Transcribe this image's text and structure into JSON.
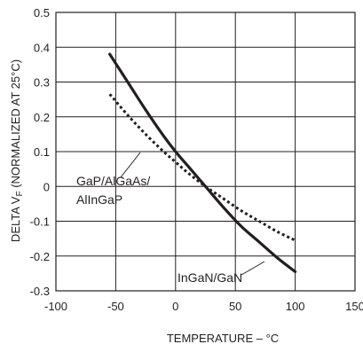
{
  "chart_data": {
    "type": "line",
    "xlabel": "TEMPERATURE – °C",
    "ylabel_main": "DELTA V",
    "ylabel_sub": "F",
    "ylabel_tail": " (NORMALIZED AT 25°C)",
    "xlim": [
      -100,
      150
    ],
    "ylim": [
      -0.3,
      0.5
    ],
    "xticks": [
      "-100",
      "-50",
      "0",
      "50",
      "100",
      "150"
    ],
    "yticks": [
      "0.5",
      "0.4",
      "0.3",
      "0.2",
      "0.1",
      "0",
      "-0.1",
      "-0.2",
      "-0.3"
    ],
    "grid": true,
    "series": [
      {
        "name": "InGaN/GaN",
        "style": "solid",
        "x": [
          -55,
          -40,
          -25,
          -10,
          0,
          10,
          25,
          40,
          55,
          70,
          85,
          100
        ],
        "y": [
          0.38,
          0.3,
          0.22,
          0.145,
          0.1,
          0.06,
          0.0,
          -0.06,
          -0.115,
          -0.16,
          -0.205,
          -0.245
        ]
      },
      {
        "name": "GaP/AlGaAs/AlInGaP",
        "style": "dotted",
        "x": [
          -55,
          -40,
          -25,
          -10,
          0,
          10,
          25,
          40,
          55,
          70,
          85,
          100
        ],
        "y": [
          0.265,
          0.205,
          0.15,
          0.1,
          0.07,
          0.04,
          0.0,
          -0.035,
          -0.07,
          -0.1,
          -0.13,
          -0.155
        ]
      }
    ],
    "annotations": {
      "gap_lines": [
        "GaP/AlGaAs/",
        "AlInGaP"
      ],
      "ingan": "InGaN/GaN"
    },
    "colors": {
      "line": "#231f20",
      "grid": "#231f20"
    }
  }
}
